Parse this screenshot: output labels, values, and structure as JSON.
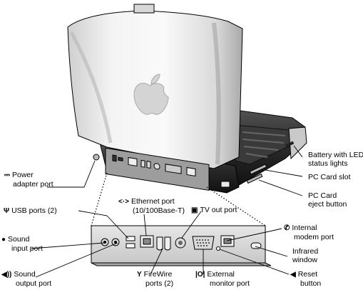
{
  "labels": {
    "power": {
      "icon": "dc-power-icon",
      "glyph": "⎓",
      "line1": "Power",
      "line2": "adapter port"
    },
    "battery": {
      "line1": "Battery with LED",
      "line2": "status lights"
    },
    "pccard_slot": {
      "line1": "PC Card slot"
    },
    "pccard_eject": {
      "line1": "PC Card",
      "line2": "eject button"
    },
    "ethernet": {
      "icon": "ethernet-icon",
      "glyph": "<·>",
      "line1": "Ethernet port",
      "line2": "(10/100Base-T)"
    },
    "tvout": {
      "icon": "tv-out-icon",
      "glyph": "▣",
      "line1": "TV out port"
    },
    "usb": {
      "icon": "usb-icon",
      "glyph": "Ψ",
      "line1": "USB ports (2)"
    },
    "modem": {
      "icon": "phone-icon",
      "glyph": "✆",
      "line1": "Internal",
      "line2": "modem port"
    },
    "sound_in": {
      "icon": "microphone-icon",
      "glyph": "●",
      "line1": "Sound",
      "line2": "input port"
    },
    "infrared": {
      "line1": "Infrared",
      "line2": "window"
    },
    "sound_out": {
      "icon": "speaker-icon",
      "glyph": "◀))",
      "line1": "Sound",
      "line2": "output port"
    },
    "firewire": {
      "icon": "firewire-icon",
      "glyph": "Y",
      "line1": "FireWire",
      "line2": "ports (2)"
    },
    "monitor": {
      "icon": "monitor-icon",
      "glyph": "|O|",
      "line1": "External",
      "line2": "monitor port"
    },
    "reset": {
      "icon": "reset-icon",
      "glyph": "◀",
      "line1": "Reset",
      "line2": "button"
    }
  }
}
